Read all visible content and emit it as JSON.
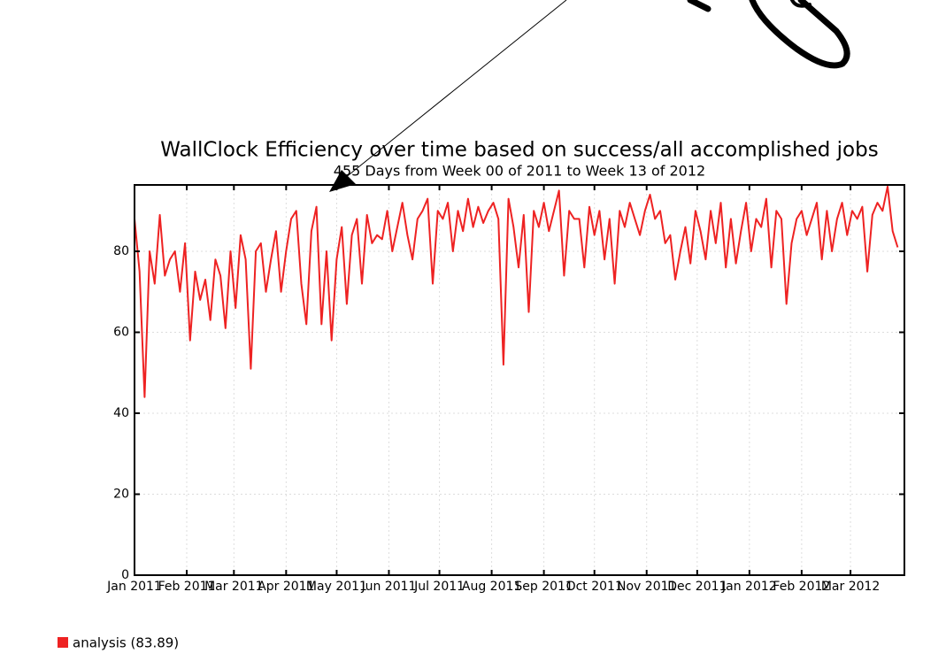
{
  "chart_data": {
    "type": "line",
    "title": "WallClock Efficiency over time based on success/all accomplished jobs",
    "subtitle": "455 Days from Week 00 of 2011 to Week 13 of 2012",
    "x": [
      0,
      3,
      6,
      9,
      12,
      15,
      18,
      21,
      24,
      27,
      30,
      33,
      36,
      39,
      42,
      45,
      48,
      51,
      54,
      57,
      60,
      63,
      66,
      69,
      72,
      75,
      78,
      81,
      84,
      87,
      90,
      93,
      96,
      99,
      102,
      105,
      108,
      111,
      114,
      117,
      120,
      123,
      126,
      129,
      132,
      135,
      138,
      141,
      144,
      147,
      150,
      153,
      156,
      159,
      162,
      165,
      168,
      171,
      174,
      177,
      180,
      183,
      186,
      189,
      192,
      195,
      198,
      201,
      204,
      207,
      210,
      213,
      216,
      219,
      222,
      225,
      228,
      231,
      234,
      237,
      240,
      243,
      246,
      249,
      252,
      255,
      258,
      261,
      264,
      267,
      270,
      273,
      276,
      279,
      282,
      285,
      288,
      291,
      294,
      297,
      300,
      303,
      306,
      309,
      312,
      315,
      318,
      321,
      324,
      327,
      330,
      333,
      336,
      339,
      342,
      345,
      348,
      351,
      354,
      357,
      360,
      363,
      366,
      369,
      372,
      375,
      378,
      381,
      384,
      387,
      390,
      393,
      396,
      399,
      402,
      405,
      408,
      411,
      414,
      417,
      420,
      423,
      426,
      429,
      432,
      435,
      438,
      441,
      444,
      447,
      450,
      453
    ],
    "series": [
      {
        "name": "analysis (83.89)",
        "color": "#ee2222",
        "values": [
          88,
          75,
          44,
          80,
          72,
          89,
          74,
          78,
          80,
          70,
          82,
          58,
          75,
          68,
          73,
          63,
          78,
          74,
          61,
          80,
          66,
          84,
          78,
          51,
          80,
          82,
          70,
          78,
          85,
          70,
          80,
          88,
          90,
          72,
          62,
          85,
          91,
          62,
          80,
          58,
          78,
          86,
          67,
          84,
          88,
          72,
          89,
          82,
          84,
          83,
          90,
          80,
          86,
          92,
          84,
          78,
          88,
          90,
          93,
          72,
          90,
          88,
          92,
          80,
          90,
          85,
          93,
          86,
          91,
          87,
          90,
          92,
          88,
          52,
          93,
          86,
          76,
          89,
          65,
          90,
          86,
          92,
          85,
          90,
          95,
          74,
          90,
          88,
          88,
          76,
          91,
          84,
          90,
          78,
          88,
          72,
          90,
          86,
          92,
          88,
          84,
          90,
          94,
          88,
          90,
          82,
          84,
          73,
          80,
          86,
          77,
          90,
          85,
          78,
          90,
          82,
          92,
          76,
          88,
          77,
          85,
          92,
          80,
          88,
          86,
          93,
          76,
          90,
          88,
          67,
          82,
          88,
          90,
          84,
          88,
          92,
          78,
          90,
          80,
          88,
          92,
          84,
          90,
          88,
          91,
          75,
          89,
          92,
          90,
          96,
          85,
          81
        ]
      }
    ],
    "xlim": [
      0,
      457
    ],
    "xticks": [
      {
        "value": 0,
        "label": "Jan 2011"
      },
      {
        "value": 31,
        "label": "Feb 2011"
      },
      {
        "value": 59,
        "label": "Mar 2011"
      },
      {
        "value": 90,
        "label": "Apr 2011"
      },
      {
        "value": 120,
        "label": "May 2011"
      },
      {
        "value": 151,
        "label": "Jun 2011"
      },
      {
        "value": 181,
        "label": "Jul 2011"
      },
      {
        "value": 212,
        "label": "Aug 2011"
      },
      {
        "value": 243,
        "label": "Sep 2011"
      },
      {
        "value": 273,
        "label": "Oct 2011"
      },
      {
        "value": 304,
        "label": "Nov 2011"
      },
      {
        "value": 334,
        "label": "Dec 2011"
      },
      {
        "value": 365,
        "label": "Jan 2012"
      },
      {
        "value": 396,
        "label": "Feb 2012"
      },
      {
        "value": 425,
        "label": "Mar 2012"
      }
    ],
    "ylim": [
      0,
      96.4
    ],
    "yticks": [
      0,
      20,
      40,
      60,
      80
    ],
    "grid": true
  }
}
